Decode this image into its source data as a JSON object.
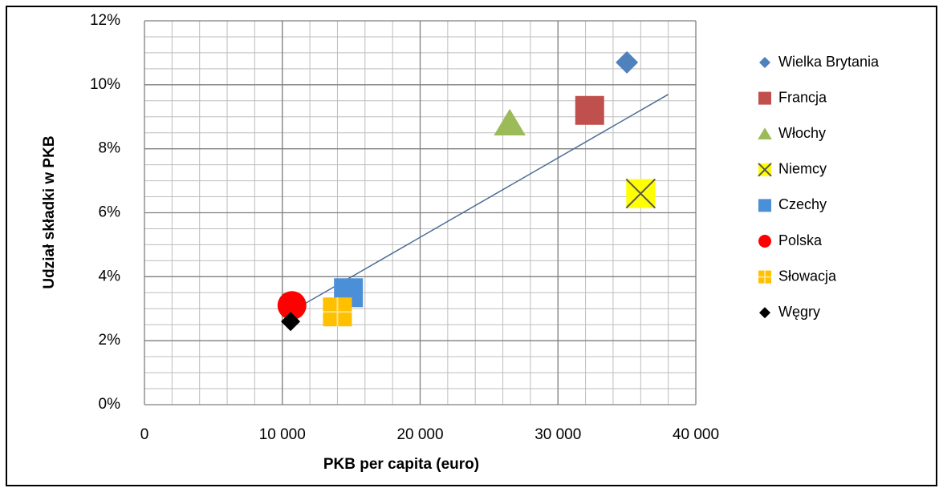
{
  "chart_data": {
    "type": "scatter",
    "xlabel": "PKB per capita (euro)",
    "ylabel": "Udział składki w PKB",
    "xlim": [
      0,
      40000
    ],
    "ylim": [
      0,
      12
    ],
    "xticks": [
      0,
      {
        "value": 10000,
        "label": "10 000"
      },
      {
        "value": 20000,
        "label": "20 000"
      },
      {
        "value": 30000,
        "label": "30 000"
      },
      {
        "value": 40000,
        "label": "40 000"
      }
    ],
    "yticks": [
      {
        "value": 0,
        "label": "0%"
      },
      {
        "value": 2,
        "label": "2%"
      },
      {
        "value": 4,
        "label": "4%"
      },
      {
        "value": 6,
        "label": "6%"
      },
      {
        "value": 8,
        "label": "8%"
      },
      {
        "value": 10,
        "label": "10%"
      },
      {
        "value": 12,
        "label": "12%"
      }
    ],
    "grid": true,
    "minor_grid": {
      "x": 2000,
      "y": 0.5
    },
    "legend": "right",
    "series": [
      {
        "name": "Wielka Brytania",
        "color": "#4f81bd",
        "marker": "diamond",
        "x": [
          35000
        ],
        "values": [
          10.7
        ]
      },
      {
        "name": "Francja",
        "color": "#c0504d",
        "marker": "square",
        "x": [
          32300
        ],
        "values": [
          9.2
        ]
      },
      {
        "name": "Włochy",
        "color": "#9bbb59",
        "marker": "triangle",
        "x": [
          26500
        ],
        "values": [
          8.8
        ]
      },
      {
        "name": "Niemcy",
        "color": "#ffff00",
        "marker": "x",
        "x": [
          36000
        ],
        "values": [
          6.6
        ]
      },
      {
        "name": "Czechy",
        "color": "#4a8fd8",
        "marker": "square",
        "x": [
          14800
        ],
        "values": [
          3.5
        ]
      },
      {
        "name": "Polska",
        "color": "#ff0000",
        "marker": "circle",
        "x": [
          10700
        ],
        "values": [
          3.1
        ]
      },
      {
        "name": "Słowacja",
        "color": "#ffc000",
        "marker": "square-plus",
        "x": [
          14000
        ],
        "values": [
          2.9
        ]
      },
      {
        "name": "Węgry",
        "color": "#000000",
        "marker": "diamond",
        "x": [
          10600
        ],
        "values": [
          2.6
        ]
      }
    ],
    "trendline": {
      "color": "#4a6a95",
      "x": [
        10600,
        38000
      ],
      "values": [
        2.9,
        9.7
      ]
    }
  }
}
